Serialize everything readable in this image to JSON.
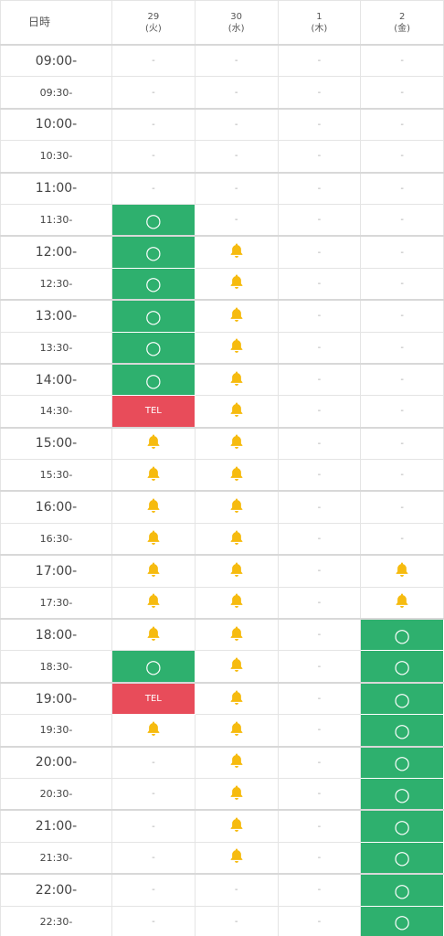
{
  "header": {
    "label": "日時",
    "days": [
      {
        "date": "29",
        "weekday": "(火)"
      },
      {
        "date": "30",
        "weekday": "(水)"
      },
      {
        "date": "1",
        "weekday": "(木)"
      },
      {
        "date": "2",
        "weekday": "(金)"
      }
    ]
  },
  "rows": [
    {
      "time": "09:00-",
      "cells": [
        "-",
        "-",
        "-",
        "-"
      ]
    },
    {
      "time": "09:30-",
      "cells": [
        "-",
        "-",
        "-",
        "-"
      ]
    },
    {
      "time": "10:00-",
      "cells": [
        "-",
        "-",
        "-",
        "-"
      ]
    },
    {
      "time": "10:30-",
      "cells": [
        "-",
        "-",
        "-",
        "-"
      ]
    },
    {
      "time": "11:00-",
      "cells": [
        "-",
        "-",
        "-",
        "-"
      ]
    },
    {
      "time": "11:30-",
      "cells": [
        "○",
        "-",
        "-",
        "-"
      ]
    },
    {
      "time": "12:00-",
      "cells": [
        "○",
        "bell",
        "-",
        "-"
      ]
    },
    {
      "time": "12:30-",
      "cells": [
        "○",
        "bell",
        "-",
        "-"
      ]
    },
    {
      "time": "13:00-",
      "cells": [
        "○",
        "bell",
        "-",
        "-"
      ]
    },
    {
      "time": "13:30-",
      "cells": [
        "○",
        "bell",
        "-",
        "-"
      ]
    },
    {
      "time": "14:00-",
      "cells": [
        "○",
        "bell",
        "-",
        "-"
      ]
    },
    {
      "time": "14:30-",
      "cells": [
        "TEL",
        "bell",
        "-",
        "-"
      ]
    },
    {
      "time": "15:00-",
      "cells": [
        "bell",
        "bell",
        "-",
        "-"
      ]
    },
    {
      "time": "15:30-",
      "cells": [
        "bell",
        "bell",
        "-",
        "-"
      ]
    },
    {
      "time": "16:00-",
      "cells": [
        "bell",
        "bell",
        "-",
        "-"
      ]
    },
    {
      "time": "16:30-",
      "cells": [
        "bell",
        "bell",
        "-",
        "-"
      ]
    },
    {
      "time": "17:00-",
      "cells": [
        "bell",
        "bell",
        "-",
        "bell"
      ]
    },
    {
      "time": "17:30-",
      "cells": [
        "bell",
        "bell",
        "-",
        "bell"
      ]
    },
    {
      "time": "18:00-",
      "cells": [
        "bell",
        "bell",
        "-",
        "○"
      ]
    },
    {
      "time": "18:30-",
      "cells": [
        "○",
        "bell",
        "-",
        "○"
      ]
    },
    {
      "time": "19:00-",
      "cells": [
        "TEL",
        "bell",
        "-",
        "○"
      ]
    },
    {
      "time": "19:30-",
      "cells": [
        "bell",
        "bell",
        "-",
        "○"
      ]
    },
    {
      "time": "20:00-",
      "cells": [
        "-",
        "bell",
        "-",
        "○"
      ]
    },
    {
      "time": "20:30-",
      "cells": [
        "-",
        "bell",
        "-",
        "○"
      ]
    },
    {
      "time": "21:00-",
      "cells": [
        "-",
        "bell",
        "-",
        "○"
      ]
    },
    {
      "time": "21:30-",
      "cells": [
        "-",
        "bell",
        "-",
        "○"
      ]
    },
    {
      "time": "22:00-",
      "cells": [
        "-",
        "-",
        "-",
        "○"
      ]
    },
    {
      "time": "22:30-",
      "cells": [
        "-",
        "-",
        "-",
        "○"
      ]
    }
  ]
}
